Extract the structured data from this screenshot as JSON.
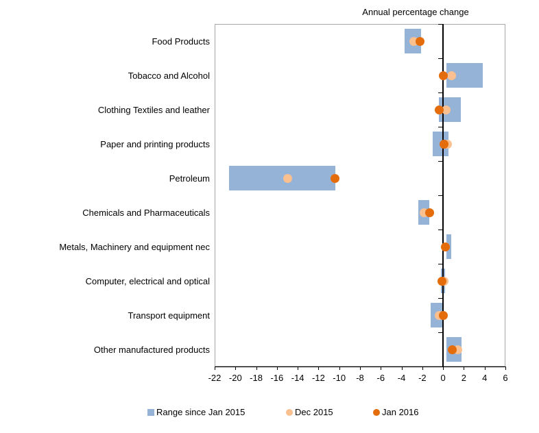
{
  "chart_data": {
    "type": "bar",
    "subtype": "horizontal-range-with-dot-markers",
    "title": "Annual percentage change",
    "xlabel": "",
    "ylabel": "",
    "xlim": [
      -22,
      6
    ],
    "xticks": [
      -22,
      -20,
      -18,
      -16,
      -14,
      -12,
      -10,
      -8,
      -6,
      -4,
      -2,
      0,
      2,
      4,
      6
    ],
    "grid": false,
    "legend_position": "bottom",
    "categories": [
      "Food Products",
      "Tobacco and Alcohol",
      "Clothing Textiles and leather",
      "Paper and printing products",
      "Petroleum",
      "Chemicals and Pharmaceuticals",
      "Metals, Machinery and equipment nec",
      "Computer, electrical and optical",
      "Transport equipment",
      "Other manufactured products"
    ],
    "series": [
      {
        "name": "Range since Jan 2015",
        "marker": "bar-range",
        "color": "#95B3D7",
        "values": [
          [
            -3.7,
            -2.1
          ],
          [
            0.3,
            3.8
          ],
          [
            -0.4,
            1.7
          ],
          [
            -1.0,
            0.5
          ],
          [
            -20.6,
            -10.4
          ],
          [
            -2.4,
            -1.3
          ],
          [
            0.3,
            0.8
          ],
          [
            -0.2,
            0.2
          ],
          [
            -1.2,
            0.0
          ],
          [
            0.3,
            1.8
          ]
        ]
      },
      {
        "name": "Dec 2015",
        "marker": "dot",
        "color": "#FAC090",
        "values": [
          -2.8,
          0.8,
          0.3,
          0.4,
          -15.0,
          -1.8,
          0.2,
          0.1,
          -0.4,
          1.4
        ]
      },
      {
        "name": "Jan 2016",
        "marker": "dot",
        "color": "#E46C0A",
        "values": [
          -2.2,
          0.0,
          -0.4,
          0.1,
          -10.4,
          -1.3,
          0.2,
          -0.1,
          0.0,
          0.9
        ]
      }
    ],
    "axis_color": "#000000",
    "plot_border_color": "#A6A6A6"
  }
}
